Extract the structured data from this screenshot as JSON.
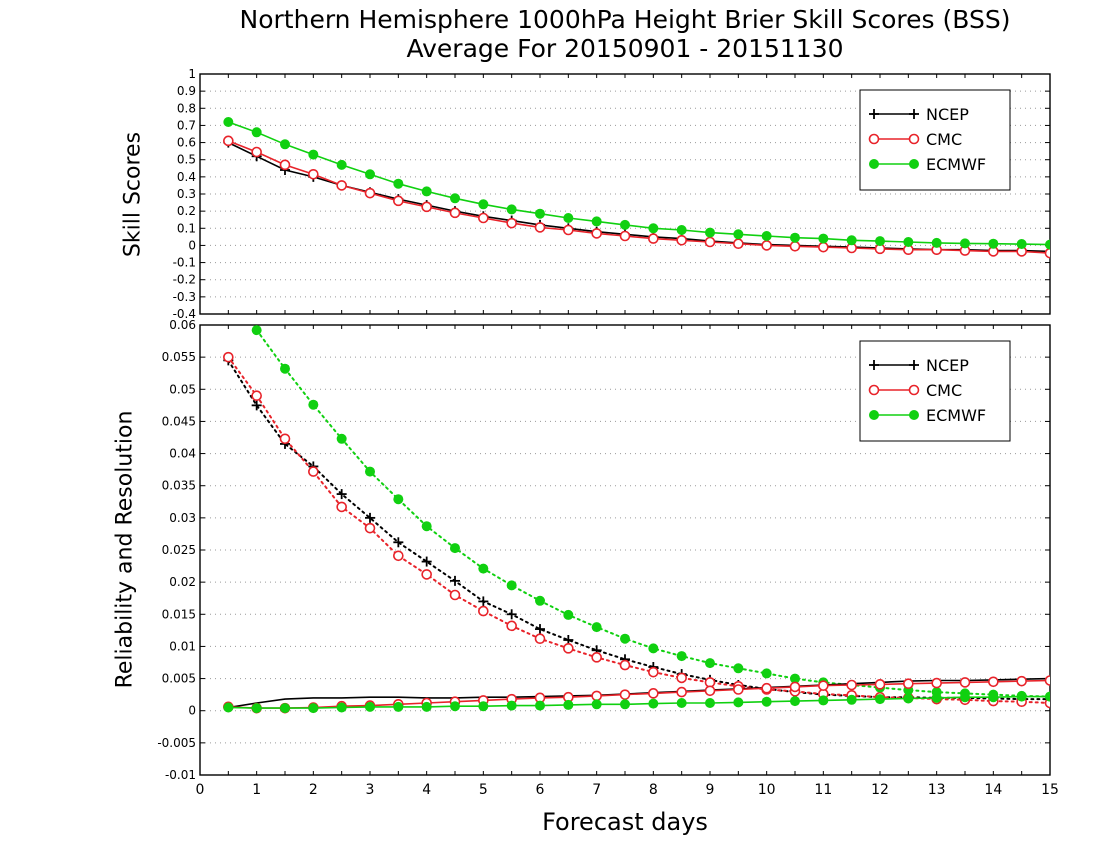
{
  "title_line1": "Northern Hemisphere 1000hPa Height Brier Skill Scores (BSS)",
  "title_line2": "Average For 20150901 - 20151130",
  "xlabel": "Forecast days",
  "colors": {
    "NCEP": "#000000",
    "CMC": "#e8232a",
    "ECMWF": "#10d010",
    "grid": "#9a9a9a"
  },
  "chart_data": [
    {
      "type": "line",
      "ylabel": "Skill Scores",
      "xlim": [
        0,
        15
      ],
      "ylim": [
        -0.4,
        1
      ],
      "yticks": [
        -0.4,
        -0.3,
        -0.2,
        -0.1,
        0,
        0.1,
        0.2,
        0.3,
        0.4,
        0.5,
        0.6,
        0.7,
        0.8,
        0.9,
        1
      ],
      "ytick_labels": [
        "-0.4",
        "-0.3",
        "-0.2",
        "-0.1",
        "0",
        "0.1",
        "0.2",
        "0.3",
        "0.4",
        "0.5",
        "0.6",
        "0.7",
        "0.8",
        "0.9",
        "1"
      ],
      "grid": true,
      "legend_position": "top-right",
      "x": [
        0.5,
        1,
        1.5,
        2,
        2.5,
        3,
        3.5,
        4,
        4.5,
        5,
        5.5,
        6,
        6.5,
        7,
        7.5,
        8,
        8.5,
        9,
        9.5,
        10,
        10.5,
        11,
        11.5,
        12,
        12.5,
        13,
        13.5,
        14,
        14.5,
        15
      ],
      "series": [
        {
          "name": "NCEP",
          "marker": "plus",
          "style": "solid",
          "values": [
            0.6,
            0.52,
            0.44,
            0.4,
            0.35,
            0.31,
            0.27,
            0.235,
            0.2,
            0.17,
            0.145,
            0.12,
            0.1,
            0.08,
            0.065,
            0.05,
            0.04,
            0.025,
            0.015,
            0.005,
            0.0,
            -0.005,
            -0.01,
            -0.015,
            -0.02,
            -0.025,
            -0.025,
            -0.03,
            -0.03,
            -0.035
          ]
        },
        {
          "name": "CMC",
          "marker": "open-circle",
          "style": "solid",
          "values": [
            0.61,
            0.545,
            0.47,
            0.415,
            0.35,
            0.305,
            0.26,
            0.225,
            0.19,
            0.16,
            0.13,
            0.105,
            0.09,
            0.07,
            0.055,
            0.04,
            0.03,
            0.02,
            0.01,
            0.0,
            -0.005,
            -0.01,
            -0.015,
            -0.02,
            -0.025,
            -0.025,
            -0.03,
            -0.035,
            -0.035,
            -0.045
          ]
        },
        {
          "name": "ECMWF",
          "marker": "filled-circle",
          "style": "solid",
          "values": [
            0.72,
            0.66,
            0.59,
            0.53,
            0.47,
            0.415,
            0.36,
            0.315,
            0.275,
            0.24,
            0.21,
            0.185,
            0.16,
            0.14,
            0.12,
            0.1,
            0.09,
            0.075,
            0.065,
            0.055,
            0.045,
            0.04,
            0.03,
            0.025,
            0.02,
            0.015,
            0.012,
            0.01,
            0.008,
            0.005
          ]
        }
      ]
    },
    {
      "type": "line",
      "ylabel": "Reliability and Resolution",
      "xlabel": "Forecast days",
      "xlim": [
        0,
        15
      ],
      "xticks": [
        0,
        1,
        2,
        3,
        4,
        5,
        6,
        7,
        8,
        9,
        10,
        11,
        12,
        13,
        14,
        15
      ],
      "xtick_labels": [
        "0",
        "1",
        "2",
        "3",
        "4",
        "5",
        "6",
        "7",
        "8",
        "9",
        "10",
        "11",
        "12",
        "13",
        "14",
        "15"
      ],
      "ylim": [
        -0.01,
        0.06
      ],
      "yticks": [
        -0.01,
        -0.005,
        0,
        0.005,
        0.01,
        0.015,
        0.02,
        0.025,
        0.03,
        0.035,
        0.04,
        0.045,
        0.05,
        0.055,
        0.06
      ],
      "ytick_labels": [
        "-0.01",
        "-0.005",
        "0",
        "0.005",
        "0.01",
        "0.015",
        "0.02",
        "0.025",
        "0.03",
        "0.035",
        "0.04",
        "0.045",
        "0.05",
        "0.055",
        "0.06"
      ],
      "grid": true,
      "legend_position": "top-right",
      "x": [
        0.5,
        1,
        1.5,
        2,
        2.5,
        3,
        3.5,
        4,
        4.5,
        5,
        5.5,
        6,
        6.5,
        7,
        7.5,
        8,
        8.5,
        9,
        9.5,
        10,
        10.5,
        11,
        11.5,
        12,
        12.5,
        13,
        13.5,
        14,
        14.5,
        15
      ],
      "series": [
        {
          "name": "NCEP",
          "component": "resolution",
          "marker": "plus",
          "style": "dotted",
          "values": [
            0.0545,
            0.0475,
            0.0415,
            0.038,
            0.0337,
            0.03,
            0.0262,
            0.0232,
            0.0202,
            0.017,
            0.015,
            0.0127,
            0.011,
            0.0094,
            0.008,
            0.0068,
            0.0057,
            0.0048,
            0.004,
            0.0034,
            0.0029,
            0.0025,
            0.0023,
            0.0021,
            0.0021,
            0.002,
            0.002,
            0.0019,
            0.0018,
            0.0018
          ]
        },
        {
          "name": "CMC",
          "component": "resolution",
          "marker": "open-circle",
          "style": "dotted",
          "values": [
            0.055,
            0.049,
            0.0423,
            0.0372,
            0.0317,
            0.0284,
            0.0241,
            0.0212,
            0.018,
            0.0155,
            0.0132,
            0.0112,
            0.0097,
            0.0083,
            0.0071,
            0.006,
            0.0051,
            0.0044,
            0.0038,
            0.0033,
            0.003,
            0.0026,
            0.0024,
            0.0021,
            0.002,
            0.0018,
            0.0017,
            0.0015,
            0.0014,
            0.0012
          ]
        },
        {
          "name": "ECMWF",
          "component": "resolution",
          "marker": "filled-circle",
          "style": "dotted",
          "values": [
            null,
            0.0592,
            0.0532,
            0.0476,
            0.0423,
            0.0372,
            0.0329,
            0.0287,
            0.0253,
            0.0221,
            0.0195,
            0.0171,
            0.0149,
            0.013,
            0.0112,
            0.0097,
            0.0085,
            0.0074,
            0.0066,
            0.0058,
            0.005,
            0.0044,
            0.004,
            0.0036,
            0.0032,
            0.0029,
            0.0027,
            0.0025,
            0.0023,
            0.0022
          ]
        },
        {
          "name": "NCEP",
          "component": "reliability",
          "marker": "none",
          "style": "solid",
          "values": [
            0.0005,
            0.0012,
            0.0018,
            0.002,
            0.002,
            0.0021,
            0.0021,
            0.002,
            0.002,
            0.0021,
            0.0021,
            0.0022,
            0.0023,
            0.0024,
            0.0026,
            0.0028,
            0.003,
            0.0032,
            0.0034,
            0.0036,
            0.0038,
            0.004,
            0.0042,
            0.0044,
            0.0046,
            0.0047,
            0.0047,
            0.0048,
            0.0049,
            0.005
          ]
        },
        {
          "name": "CMC",
          "component": "reliability",
          "marker": "open-circle",
          "style": "solid",
          "values": [
            0.0006,
            0.0004,
            0.0004,
            0.0005,
            0.0007,
            0.0008,
            0.001,
            0.0012,
            0.0014,
            0.0016,
            0.0018,
            0.002,
            0.0021,
            0.0023,
            0.0025,
            0.0027,
            0.0029,
            0.0031,
            0.0033,
            0.0035,
            0.0037,
            0.0039,
            0.004,
            0.0041,
            0.0042,
            0.0043,
            0.0044,
            0.0045,
            0.0046,
            0.0047
          ]
        },
        {
          "name": "ECMWF",
          "component": "reliability",
          "marker": "filled-circle",
          "style": "solid",
          "values": [
            0.0005,
            0.0004,
            0.0004,
            0.0004,
            0.0005,
            0.0006,
            0.0006,
            0.0006,
            0.0007,
            0.0007,
            0.0008,
            0.0008,
            0.0009,
            0.001,
            0.001,
            0.0011,
            0.0012,
            0.0012,
            0.0013,
            0.0014,
            0.0015,
            0.0016,
            0.0017,
            0.0018,
            0.0019,
            0.002,
            0.0021,
            0.0021,
            0.0022,
            0.0022
          ]
        }
      ]
    }
  ]
}
